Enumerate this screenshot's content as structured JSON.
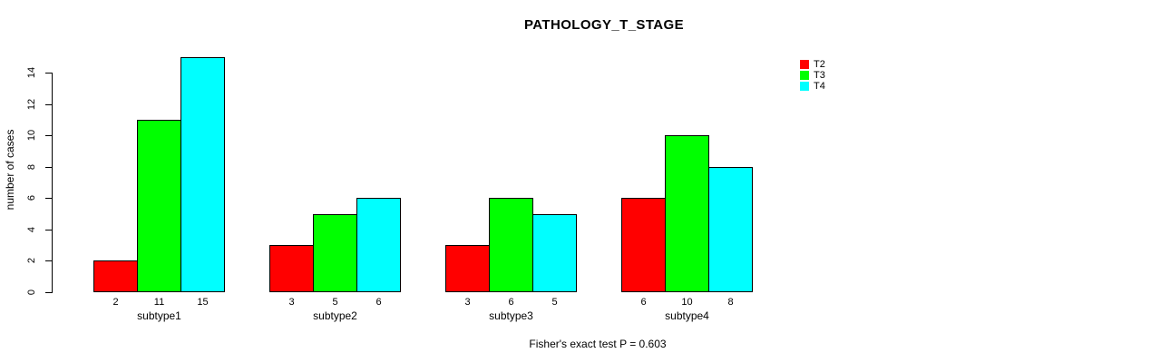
{
  "chart_data": {
    "type": "bar",
    "title": "PATHOLOGY_T_STAGE",
    "ylabel": "number of cases",
    "xlabel": "",
    "categories": [
      "subtype1",
      "subtype2",
      "subtype3",
      "subtype4"
    ],
    "series": [
      {
        "name": "T2",
        "color": "#ff0000",
        "values": [
          2,
          3,
          3,
          6
        ]
      },
      {
        "name": "T3",
        "color": "#00ff00",
        "values": [
          11,
          5,
          6,
          10
        ]
      },
      {
        "name": "T4",
        "color": "#00ffff",
        "values": [
          15,
          6,
          5,
          8
        ]
      }
    ],
    "yticks": [
      0,
      2,
      4,
      6,
      8,
      10,
      12,
      14
    ],
    "ylim": [
      0,
      15
    ],
    "bar_value_labels": true,
    "grid": false,
    "legend_position": "top-right",
    "legend_entries": [
      "T2",
      "T3",
      "T4"
    ],
    "footer": "Fisher's exact test P = 0.603",
    "bar_border_color": "#000000",
    "text_color": "#000000",
    "background_color": "#ffffff"
  }
}
